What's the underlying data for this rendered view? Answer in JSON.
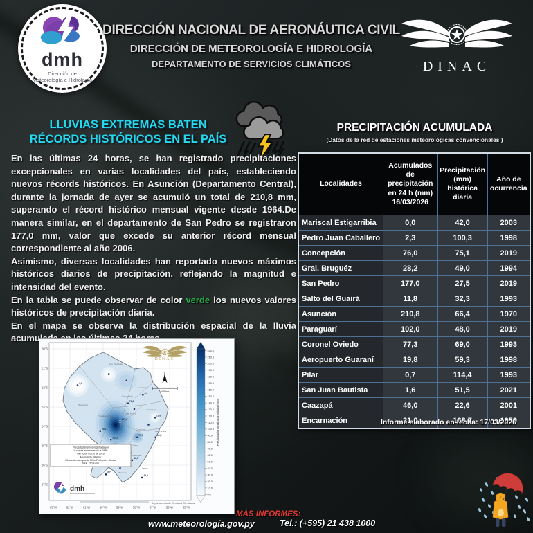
{
  "colors": {
    "headline_cyan": "#27d8ea",
    "record_green": "#2bb24c",
    "footer_red": "#e03a35",
    "table_border_blue": "#4d7296",
    "map_gold": "#b3a065"
  },
  "header": {
    "title": "DIRECCIÓN NACIONAL DE AERONÁUTICA CIVIL",
    "subtitle": "DIRECCIÓN DE METEOROLOGÍA  E HIDROLOGÍA",
    "department": "DEPARTAMENTO DE SERVICIOS CLIMÁTICOS",
    "dmh_abbr": "dmh",
    "dmh_caption_line1": "Dirección de",
    "dmh_caption_line2": "Meteorología e Hidrología",
    "dinac_label": "DINAC"
  },
  "article": {
    "headline": "LLUVIAS EXTREMAS BATEN RÉCORDS HISTÓRICOS EN EL PAÍS",
    "paragraph1": "En las últimas 24 horas, se han registrado precipitaciones excepcionales en varias localidades del país, estableciendo nuevos récords históricos. En Asunción (Departamento Central), durante la jornada de ayer se acumuló un total de 210,8 mm, superando el récord histórico mensual vigente desde 1964.De manera similar, en el departamento de San Pedro se registraron 177,0 mm, valor que excede su anterior récord mensual correspondiente al año 2006.",
    "paragraph2": "Asimismo, diversas localidades han reportado nuevos máximos históricos diarios de precipitación, reflejando la magnitud e intensidad del evento.",
    "paragraph3_before": "En la tabla se puede observar de color ",
    "paragraph3_highlight": "verde",
    "paragraph3_after": " los nuevos valores históricos de precipitación diaria.",
    "paragraph4": "En el mapa se observa la distribución espacial de la lluvia acumulada en las últimas 24 horas."
  },
  "table": {
    "title": "PRECIPITACIÓN ACUMULADA",
    "subtitle": "(Datos de la red de estaciones meteorológicas convencionales )",
    "columns": [
      "Localidades",
      "Acumulados de precipitación en 24 h (mm) 16/03/2026",
      "Precipitación (mm) histórica diaria",
      "Año de ocurrencia"
    ],
    "rows": [
      {
        "localidad": "Mariscal Estigarribia",
        "acumulado": "0,0",
        "historica": "42,0",
        "year": "2003",
        "record": false
      },
      {
        "localidad": "Pedro Juan Caballero",
        "acumulado": "2,3",
        "historica": "100,3",
        "year": "1998",
        "record": false
      },
      {
        "localidad": "Concepción",
        "acumulado": "76,0",
        "historica": "75,1",
        "year": "2019",
        "record": true
      },
      {
        "localidad": "Gral. Bruguéz",
        "acumulado": "28,2",
        "historica": "49,0",
        "year": "1994",
        "record": false
      },
      {
        "localidad": "San Pedro",
        "acumulado": "177,0",
        "historica": "27,5",
        "year": "2019",
        "record": true
      },
      {
        "localidad": "Salto del Guairá",
        "acumulado": "11,8",
        "historica": "32,3",
        "year": "1993",
        "record": false
      },
      {
        "localidad": "Asunción",
        "acumulado": "210,8",
        "historica": "66,4",
        "year": "1970",
        "record": true
      },
      {
        "localidad": "Paraguarí",
        "acumulado": "102,0",
        "historica": "48,0",
        "year": "2019",
        "record": true
      },
      {
        "localidad": "Coronel Oviedo",
        "acumulado": "77,3",
        "historica": "69,0",
        "year": "1993",
        "record": true
      },
      {
        "localidad": "Aeropuerto Guaraní",
        "acumulado": "19,8",
        "historica": "59,3",
        "year": "1998",
        "record": false
      },
      {
        "localidad": "Pilar",
        "acumulado": "0,7",
        "historica": "114,4",
        "year": "1993",
        "record": false
      },
      {
        "localidad": "San Juan Bautista",
        "acumulado": "1,6",
        "historica": "51,5",
        "year": "2021",
        "record": false
      },
      {
        "localidad": "Caazapá",
        "acumulado": "46,0",
        "historica": "22,6",
        "year": "2001",
        "record": true
      },
      {
        "localidad": "Encarnación",
        "acumulado": "21,0",
        "historica": "168,7",
        "year": "1959",
        "record": false
      }
    ]
  },
  "report_date": "Informe elaborado en fecha:  17/03/2026",
  "map": {
    "legend_box_lines": [
      "Precipitación (mm) registrada por",
      "la red de estaciones de la DMH",
      "Del 16 de marzo de 2026",
      "Acumulado Máximo:",
      "Ubicación: Aeropuerto Silvio Pettirossi - Central",
      "Valor: 210.8 mm."
    ],
    "scale_label": "100 km",
    "dinac_label": "DINAC",
    "dmh_label": "dmh",
    "credit": "Departamento de Servicios Climáticos",
    "colorbar_label": "Precipitación total acumulada (mm)",
    "colorbar_ticks": [
      "220.0",
      "210.0",
      "200.0",
      "190.0",
      "180.0",
      "170.0",
      "160.0",
      "150.0",
      "140.0",
      "130.0",
      "120.0",
      "110.0",
      "100.0",
      "90.0",
      "80.0",
      "70.0",
      "60.0",
      "50.0",
      "40.0",
      "30.0",
      "20.0",
      "10.0",
      "0.0"
    ],
    "x_axis": [
      "63°W",
      "62°W",
      "61°W",
      "60°W",
      "59°W",
      "58°W",
      "57°W",
      "56°W",
      "55°W"
    ],
    "y_axis": [
      "20°S",
      "21°S",
      "22°S",
      "23°S",
      "24°S",
      "25°S",
      "26°S",
      "27°S"
    ],
    "stations": [
      {
        "fx": 0.2,
        "fy": 0.27,
        "v": "0,0"
      },
      {
        "fx": 0.42,
        "fy": 0.2,
        "v": ""
      },
      {
        "fx": 0.545,
        "fy": 0.24,
        "v": ""
      },
      {
        "fx": 0.66,
        "fy": 0.33,
        "v": "2,3"
      },
      {
        "fx": 0.555,
        "fy": 0.385,
        "v": "76,0"
      },
      {
        "fx": 0.6,
        "fy": 0.42,
        "v": ""
      },
      {
        "fx": 0.5,
        "fy": 0.5,
        "v": "177,0"
      },
      {
        "fx": 0.745,
        "fy": 0.475,
        "v": "11,8"
      },
      {
        "fx": 0.36,
        "fy": 0.56,
        "v": "28,2"
      },
      {
        "fx": 0.435,
        "fy": 0.615,
        "v": "210,8"
      },
      {
        "fx": 0.62,
        "fy": 0.6,
        "v": "77,3"
      },
      {
        "fx": 0.75,
        "fy": 0.6,
        "v": "19,8"
      },
      {
        "fx": 0.7,
        "fy": 0.52,
        "v": ""
      },
      {
        "fx": 0.52,
        "fy": 0.7,
        "v": "102,0"
      },
      {
        "fx": 0.585,
        "fy": 0.745,
        "v": "46,0"
      },
      {
        "fx": 0.5,
        "fy": 0.795,
        "v": "1,6"
      },
      {
        "fx": 0.4,
        "fy": 0.835,
        "v": "0,7"
      },
      {
        "fx": 0.655,
        "fy": 0.855,
        "v": "21,0"
      }
    ],
    "departments": [
      {
        "name": "Alto Paraguay",
        "fx": 0.47,
        "fy": 0.14
      },
      {
        "name": "Boquerón",
        "fx": 0.24,
        "fy": 0.4
      },
      {
        "name": "Presidente Hayes",
        "fx": 0.4,
        "fy": 0.47
      },
      {
        "name": "Concepción",
        "fx": 0.55,
        "fy": 0.345
      },
      {
        "name": "Amambay",
        "fx": 0.655,
        "fy": 0.29
      },
      {
        "name": "San Pedro",
        "fx": 0.575,
        "fy": 0.455
      },
      {
        "name": "Canindeyú",
        "fx": 0.72,
        "fy": 0.43
      },
      {
        "name": "Caaguazú",
        "fx": 0.645,
        "fy": 0.555
      },
      {
        "name": "Alto Paraná",
        "fx": 0.785,
        "fy": 0.565
      },
      {
        "name": "Central",
        "fx": 0.465,
        "fy": 0.645
      },
      {
        "name": "Guairá",
        "fx": 0.605,
        "fy": 0.655
      },
      {
        "name": "Paraguarí",
        "fx": 0.525,
        "fy": 0.725
      },
      {
        "name": "Caazapá",
        "fx": 0.615,
        "fy": 0.72
      },
      {
        "name": "Misiones",
        "fx": 0.515,
        "fy": 0.83
      },
      {
        "name": "Itapúa",
        "fx": 0.675,
        "fy": 0.8
      },
      {
        "name": "Ñeembucú",
        "fx": 0.4,
        "fy": 0.78
      }
    ]
  },
  "footer": {
    "website": "www.meteorología.gov.py",
    "more_info": "MÁS INFORMES:",
    "phone": "Tel.: (+595) 21 438 1000"
  }
}
